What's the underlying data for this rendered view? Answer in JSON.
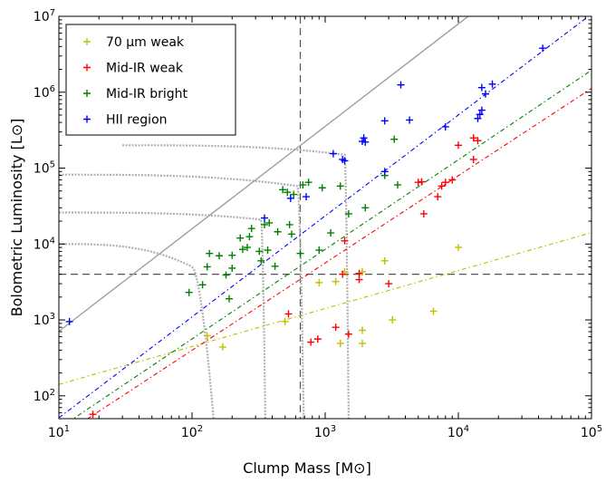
{
  "chart_data": {
    "type": "scatter",
    "xscale": "log",
    "yscale": "log",
    "xlim": [
      10,
      100000
    ],
    "ylim": [
      50,
      10000000
    ],
    "xlabel": "Clump Mass [M⊙]",
    "ylabel": "Bolometric Luminosity [L⊙]",
    "x_ticks": [
      {
        "value": 10,
        "base": "10",
        "exp": "1"
      },
      {
        "value": 100,
        "base": "10",
        "exp": "2"
      },
      {
        "value": 1000,
        "base": "10",
        "exp": "3"
      },
      {
        "value": 10000,
        "base": "10",
        "exp": "4"
      },
      {
        "value": 100000,
        "base": "10",
        "exp": "5"
      }
    ],
    "y_ticks": [
      {
        "value": 100,
        "base": "10",
        "exp": "2"
      },
      {
        "value": 1000,
        "base": "10",
        "exp": "3"
      },
      {
        "value": 10000,
        "base": "10",
        "exp": "4"
      },
      {
        "value": 100000,
        "base": "10",
        "exp": "5"
      },
      {
        "value": 1000000,
        "base": "10",
        "exp": "6"
      },
      {
        "value": 10000000,
        "base": "10",
        "exp": "7"
      }
    ],
    "legend": {
      "placement": "top-left",
      "entries": [
        {
          "label": "70 μm weak",
          "color": "#bfbf00"
        },
        {
          "label": "Mid-IR weak",
          "color": "#ff0000"
        },
        {
          "label": "Mid-IR bright",
          "color": "#008000"
        },
        {
          "label": "HII region",
          "color": "#0000ff"
        }
      ]
    },
    "reference_lines": {
      "vertical_x": 650,
      "horizontal_y": 4000
    },
    "diagonal_line": {
      "color": "#a0a0a0",
      "slope": 1.35,
      "intercept_log": 1.5
    },
    "fits": [
      {
        "color": "#bfbf00",
        "slope": 0.5,
        "intercept_log": 1.65
      },
      {
        "color": "#ff0000",
        "slope": 1.15,
        "intercept_log": 0.3
      },
      {
        "color": "#008000",
        "slope": 1.18,
        "intercept_log": 0.39
      },
      {
        "color": "#0000ff",
        "slope": 1.33,
        "intercept_log": 0.38
      }
    ],
    "tracks": [
      {
        "horizontal": {
          "m_start": 10,
          "m_end": 100,
          "L_start": 10000,
          "L_end": 5000
        },
        "vertical": {
          "m_start": 100,
          "m_end": 145,
          "L_start": 5000,
          "L_end": 50
        }
      },
      {
        "horizontal": {
          "m_start": 10,
          "m_end": 330,
          "L_start": 26000,
          "L_end": 21000
        },
        "vertical": {
          "m_start": 330,
          "m_end": 355,
          "L_start": 21000,
          "L_end": 50
        }
      },
      {
        "horizontal": {
          "m_start": 10,
          "m_end": 620,
          "L_start": 82000,
          "L_end": 58000
        },
        "vertical": {
          "m_start": 620,
          "m_end": 690,
          "L_start": 58000,
          "L_end": 50
        }
      },
      {
        "horizontal": {
          "m_start": 30,
          "m_end": 1400,
          "L_start": 200000,
          "L_end": 150000
        },
        "vertical": {
          "m_start": 1400,
          "m_end": 1500,
          "L_start": 150000,
          "L_end": 50
        }
      }
    ],
    "series": [
      {
        "name": "70 μm weak",
        "color": "#bfbf00",
        "points": [
          [
            130,
            620
          ],
          [
            170,
            440
          ],
          [
            500,
            950
          ],
          [
            900,
            3100
          ],
          [
            1200,
            3200
          ],
          [
            1300,
            490
          ],
          [
            1400,
            4300
          ],
          [
            1900,
            4300
          ],
          [
            1900,
            730
          ],
          [
            1900,
            490
          ],
          [
            2800,
            6000
          ],
          [
            3200,
            1000
          ],
          [
            6500,
            1300
          ],
          [
            10000,
            9000
          ]
        ]
      },
      {
        "name": "Mid-IR weak",
        "color": "#ff0000",
        "points": [
          [
            18,
            57
          ],
          [
            530,
            1200
          ],
          [
            780,
            510
          ],
          [
            880,
            560
          ],
          [
            1200,
            800
          ],
          [
            1350,
            4000
          ],
          [
            1400,
            11000
          ],
          [
            1500,
            650
          ],
          [
            1800,
            4100
          ],
          [
            1800,
            3400
          ],
          [
            3000,
            3000
          ],
          [
            5000,
            65000
          ],
          [
            5300,
            66000
          ],
          [
            5500,
            25000
          ],
          [
            7000,
            42000
          ],
          [
            7500,
            58000
          ],
          [
            8000,
            65000
          ],
          [
            9000,
            70000
          ],
          [
            10000,
            200000
          ],
          [
            13000,
            250000
          ],
          [
            13000,
            130000
          ],
          [
            14000,
            230000
          ]
        ]
      },
      {
        "name": "Mid-IR bright",
        "color": "#008000",
        "points": [
          [
            95,
            2300
          ],
          [
            120,
            2900
          ],
          [
            130,
            5000
          ],
          [
            135,
            7500
          ],
          [
            160,
            7000
          ],
          [
            180,
            3900
          ],
          [
            190,
            1900
          ],
          [
            200,
            4800
          ],
          [
            200,
            7100
          ],
          [
            230,
            12000
          ],
          [
            240,
            8500
          ],
          [
            260,
            9000
          ],
          [
            270,
            12500
          ],
          [
            280,
            16000
          ],
          [
            320,
            8000
          ],
          [
            330,
            6000
          ],
          [
            350,
            18000
          ],
          [
            370,
            8300
          ],
          [
            380,
            19000
          ],
          [
            420,
            5100
          ],
          [
            440,
            14500
          ],
          [
            480,
            52000
          ],
          [
            520,
            48000
          ],
          [
            540,
            18000
          ],
          [
            560,
            13500
          ],
          [
            580,
            45000
          ],
          [
            650,
            7500
          ],
          [
            680,
            60000
          ],
          [
            750,
            65000
          ],
          [
            900,
            8300
          ],
          [
            950,
            55000
          ],
          [
            1100,
            14000
          ],
          [
            1300,
            58000
          ],
          [
            1500,
            25000
          ],
          [
            2000,
            30000
          ],
          [
            2800,
            80000
          ],
          [
            3300,
            240000
          ],
          [
            3500,
            60000
          ]
        ]
      },
      {
        "name": "HII region",
        "color": "#0000ff",
        "points": [
          [
            12,
            950
          ],
          [
            350,
            22000
          ],
          [
            550,
            40000
          ],
          [
            720,
            42000
          ],
          [
            1150,
            155000
          ],
          [
            1350,
            130000
          ],
          [
            1400,
            125000
          ],
          [
            1900,
            225000
          ],
          [
            1950,
            250000
          ],
          [
            2000,
            220000
          ],
          [
            2800,
            90000
          ],
          [
            2800,
            420000
          ],
          [
            3700,
            1250000
          ],
          [
            4300,
            430000
          ],
          [
            8000,
            350000
          ],
          [
            14000,
            450000
          ],
          [
            14500,
            510000
          ],
          [
            15000,
            580000
          ],
          [
            15000,
            1150000
          ],
          [
            16000,
            950000
          ],
          [
            18000,
            1280000
          ],
          [
            43000,
            3800000
          ]
        ]
      }
    ]
  }
}
